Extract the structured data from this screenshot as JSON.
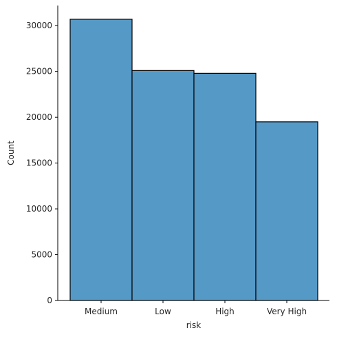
{
  "chart_data": {
    "type": "bar",
    "categories": [
      "Medium",
      "Low",
      "High",
      "Very High"
    ],
    "values": [
      30700,
      25100,
      24800,
      19500
    ],
    "xlabel": "risk",
    "ylabel": "Count",
    "ylim": [
      0,
      32200
    ],
    "yticks": [
      0,
      5000,
      10000,
      15000,
      20000,
      25000,
      30000
    ],
    "grid": false,
    "bar_color": "#5599c7",
    "edge_color": "#000000"
  }
}
